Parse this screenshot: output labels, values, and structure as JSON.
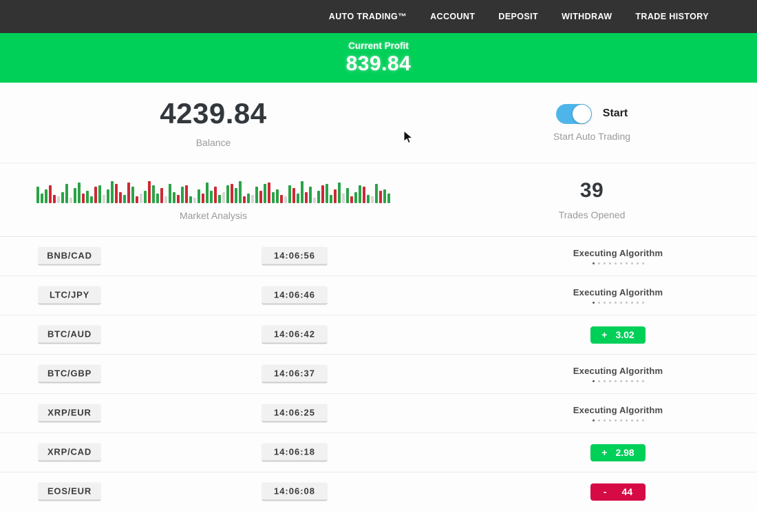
{
  "navbar": {
    "items": [
      {
        "label": "AUTO TRADING™"
      },
      {
        "label": "ACCOUNT"
      },
      {
        "label": "DEPOSIT"
      },
      {
        "label": "WITHDRAW"
      },
      {
        "label": "TRADE HISTORY"
      }
    ]
  },
  "profit_banner": {
    "label": "Current Profit",
    "value": "839.84"
  },
  "stats": {
    "balance": {
      "value": "4239.84",
      "label": "Balance"
    },
    "auto_trading": {
      "toggle_on": true,
      "toggle_label": "Start",
      "label": "Start Auto Trading"
    },
    "market_analysis": {
      "label": "Market Analysis",
      "bars": [
        "g24",
        "g14",
        "g20",
        "r26",
        "r12",
        "e10",
        "g16",
        "g28",
        "e8",
        "g22",
        "g30",
        "r14",
        "g18",
        "g10",
        "r24",
        "g26",
        "e12",
        "g20",
        "g32",
        "r28",
        "r16",
        "g12",
        "r30",
        "g24",
        "r10",
        "e14",
        "g18",
        "r32",
        "g26",
        "g14",
        "r22",
        "e10",
        "g28",
        "g16",
        "r12",
        "g24",
        "r26",
        "g10",
        "e8",
        "g20",
        "r14",
        "g30",
        "g18",
        "r24",
        "g12",
        "e16",
        "g26",
        "r28",
        "g22",
        "g32",
        "r10",
        "g14",
        "e12",
        "g24",
        "r18",
        "g28",
        "r30",
        "g16",
        "g20",
        "r12",
        "e10",
        "g26",
        "r22",
        "g14",
        "g32",
        "r16",
        "g24",
        "e8",
        "g18",
        "r26",
        "g28",
        "g12",
        "r20",
        "g30",
        "e14",
        "g22",
        "r10",
        "g16",
        "g26",
        "r24",
        "g12",
        "e10",
        "g28",
        "r18",
        "g20",
        "g14"
      ]
    },
    "trades_opened": {
      "value": "39",
      "label": "Trades Opened"
    }
  },
  "trades": [
    {
      "pair": "BNB/CAD",
      "time": "14:06:56",
      "status": "executing",
      "status_text": "Executing Algorithm"
    },
    {
      "pair": "LTC/JPY",
      "time": "14:06:46",
      "status": "executing",
      "status_text": "Executing Algorithm"
    },
    {
      "pair": "BTC/AUD",
      "time": "14:06:42",
      "status": "profit",
      "result": {
        "sign": "+",
        "value": "3.02"
      }
    },
    {
      "pair": "BTC/GBP",
      "time": "14:06:37",
      "status": "executing",
      "status_text": "Executing Algorithm"
    },
    {
      "pair": "XRP/EUR",
      "time": "14:06:25",
      "status": "executing",
      "status_text": "Executing Algorithm"
    },
    {
      "pair": "XRP/CAD",
      "time": "14:06:18",
      "status": "profit",
      "result": {
        "sign": "+",
        "value": "2.98"
      }
    },
    {
      "pair": "EOS/EUR",
      "time": "14:06:08",
      "status": "loss",
      "result": {
        "sign": "-",
        "value": "44"
      }
    }
  ],
  "colors": {
    "green": "#00cf58",
    "red": "#d60b46",
    "toggle_blue": "#4eb5ea",
    "navbar_bg": "#333333"
  }
}
